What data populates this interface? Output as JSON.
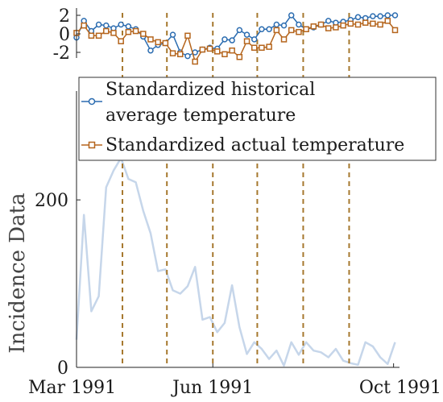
{
  "chart_data": [
    {
      "type": "line",
      "ylabel": "Incidence Data",
      "ylim": [
        0,
        330
      ],
      "y_ticks": [
        "0",
        "200"
      ],
      "x_ticks": [
        "Mar 1991",
        "Jun 1991",
        "Oct 1991"
      ],
      "x_start": "1991-03-01",
      "x_end": "1991-10-05",
      "grid": false,
      "series": [
        {
          "color": "#c6d6ea",
          "x": [
            "1991-03-01",
            "1991-03-06",
            "1991-03-11",
            "1991-03-16",
            "1991-03-21",
            "1991-03-26",
            "1991-03-31",
            "1991-04-05",
            "1991-04-10",
            "1991-04-15",
            "1991-04-20",
            "1991-04-25",
            "1991-04-30",
            "1991-05-05",
            "1991-05-10",
            "1991-05-15",
            "1991-05-20",
            "1991-05-25",
            "1991-05-30",
            "1991-06-04",
            "1991-06-09",
            "1991-06-14",
            "1991-06-19",
            "1991-06-24",
            "1991-06-29",
            "1991-07-04",
            "1991-07-09",
            "1991-07-14",
            "1991-07-19",
            "1991-07-24",
            "1991-07-29",
            "1991-08-03",
            "1991-08-08",
            "1991-08-13",
            "1991-08-18",
            "1991-08-23",
            "1991-08-28",
            "1991-09-02",
            "1991-09-07",
            "1991-09-12",
            "1991-09-17",
            "1991-09-22",
            "1991-09-27",
            "1991-10-02"
          ],
          "values": [
            33,
            182,
            67,
            85,
            215,
            235,
            250,
            225,
            221,
            187,
            160,
            115,
            117,
            92,
            88,
            97,
            120,
            57,
            60,
            42,
            53,
            98,
            48,
            16,
            30,
            22,
            10,
            20,
            2,
            30,
            15,
            30,
            20,
            18,
            12,
            22,
            8,
            5,
            3,
            30,
            25,
            12,
            4,
            30
          ]
        }
      ],
      "event_dates": [
        "1991-04-01",
        "1991-05-01",
        "1991-06-01",
        "1991-07-01",
        "1991-08-01",
        "1991-09-01"
      ]
    },
    {
      "type": "line",
      "y_ticks": [
        "2",
        "0",
        "-2"
      ],
      "ylim": [
        -2.8,
        2.5
      ],
      "x_start": "1991-03-01",
      "x_end": "1991-10-05",
      "series": [
        {
          "name": "Standardized historical average temperature",
          "name_lines": [
            "Standardized historical",
            "average temperature"
          ],
          "color": "#2b6cb0",
          "marker": "circle",
          "x": [
            "1991-03-01",
            "1991-03-06",
            "1991-03-11",
            "1991-03-16",
            "1991-03-21",
            "1991-03-26",
            "1991-03-31",
            "1991-04-05",
            "1991-04-10",
            "1991-04-15",
            "1991-04-20",
            "1991-04-25",
            "1991-04-30",
            "1991-05-05",
            "1991-05-10",
            "1991-05-15",
            "1991-05-20",
            "1991-05-25",
            "1991-05-30",
            "1991-06-04",
            "1991-06-09",
            "1991-06-14",
            "1991-06-19",
            "1991-06-24",
            "1991-06-29",
            "1991-07-04",
            "1991-07-09",
            "1991-07-14",
            "1991-07-19",
            "1991-07-24",
            "1991-07-29",
            "1991-08-03",
            "1991-08-08",
            "1991-08-13",
            "1991-08-18",
            "1991-08-23",
            "1991-08-28",
            "1991-09-02",
            "1991-09-07",
            "1991-09-12",
            "1991-09-17",
            "1991-09-22",
            "1991-09-27",
            "1991-10-02"
          ],
          "values": [
            -0.4,
            1.4,
            0.3,
            1.0,
            0.9,
            0.6,
            1.0,
            0.8,
            0.5,
            -0.3,
            -1.8,
            -1.2,
            -1.0,
            -0.1,
            -2.0,
            -2.4,
            -2.0,
            -1.7,
            -1.5,
            -1.6,
            -0.6,
            -0.7,
            0.4,
            -0.1,
            -0.6,
            0.5,
            0.5,
            1.0,
            0.9,
            2.0,
            1.0,
            0.5,
            0.7,
            1.0,
            1.4,
            1.2,
            1.3,
            1.5,
            1.8,
            1.7,
            1.9,
            1.9,
            2.0,
            2.0
          ]
        },
        {
          "name": "Standardized actual temperature",
          "color": "#b5651d",
          "marker": "square",
          "x": [
            "1991-03-01",
            "1991-03-06",
            "1991-03-11",
            "1991-03-16",
            "1991-03-21",
            "1991-03-26",
            "1991-03-31",
            "1991-04-05",
            "1991-04-10",
            "1991-04-15",
            "1991-04-20",
            "1991-04-25",
            "1991-04-30",
            "1991-05-05",
            "1991-05-10",
            "1991-05-15",
            "1991-05-20",
            "1991-05-25",
            "1991-05-30",
            "1991-06-04",
            "1991-06-09",
            "1991-06-14",
            "1991-06-19",
            "1991-06-24",
            "1991-06-29",
            "1991-07-04",
            "1991-07-09",
            "1991-07-14",
            "1991-07-19",
            "1991-07-24",
            "1991-07-29",
            "1991-08-03",
            "1991-08-08",
            "1991-08-13",
            "1991-08-18",
            "1991-08-23",
            "1991-08-28",
            "1991-09-02",
            "1991-09-07",
            "1991-09-12",
            "1991-09-17",
            "1991-09-22",
            "1991-09-27",
            "1991-10-02"
          ],
          "values": [
            0.1,
            0.9,
            -0.2,
            -0.2,
            0.3,
            0.1,
            -0.8,
            0.2,
            0.3,
            0.0,
            -0.6,
            -0.9,
            -1.0,
            -2.1,
            -2.2,
            -0.2,
            -3.0,
            -1.7,
            -1.6,
            -1.9,
            -2.2,
            -1.8,
            -2.5,
            -0.8,
            -1.5,
            -1.5,
            -1.4,
            0.4,
            -0.6,
            0.4,
            0.2,
            0.5,
            0.8,
            1.0,
            0.6,
            0.7,
            0.9,
            1.1,
            1.0,
            1.2,
            1.1,
            1.0,
            1.4,
            0.4
          ]
        }
      ]
    }
  ]
}
